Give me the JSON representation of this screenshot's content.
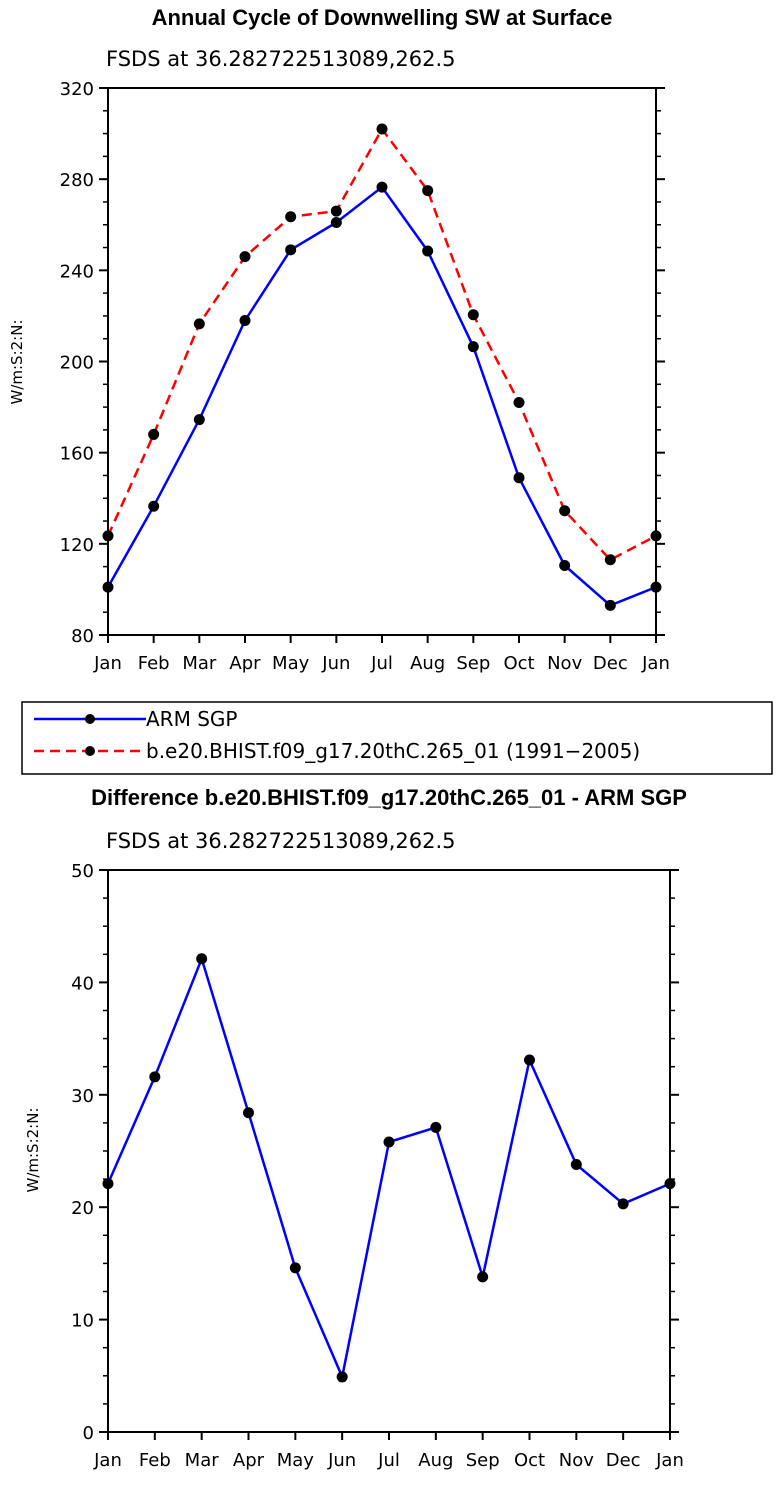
{
  "months": [
    "Jan",
    "Feb",
    "Mar",
    "Apr",
    "May",
    "Jun",
    "Jul",
    "Aug",
    "Sep",
    "Oct",
    "Nov",
    "Dec",
    "Jan"
  ],
  "chart_data": [
    {
      "type": "line",
      "title": "Annual Cycle of Downwelling SW at Surface",
      "subtitle": "FSDS at 36.282722513089,262.5",
      "xlabel": "",
      "ylabel": "W/m:S:2:N:",
      "ylim": [
        80,
        320
      ],
      "yticks": [
        80,
        120,
        160,
        200,
        240,
        280,
        320
      ],
      "categories": [
        "Jan",
        "Feb",
        "Mar",
        "Apr",
        "May",
        "Jun",
        "Jul",
        "Aug",
        "Sep",
        "Oct",
        "Nov",
        "Dec",
        "Jan"
      ],
      "series": [
        {
          "name": "ARM SGP",
          "color": "#0000ff",
          "dash": "solid",
          "values": [
            101,
            136.5,
            174.5,
            218,
            249,
            261,
            276.5,
            248.5,
            206.5,
            149,
            110.5,
            93,
            101
          ]
        },
        {
          "name": "b.e20.BHIST.f09_g17.20thC.265_01 (1991−2005)",
          "color": "#ff0000",
          "dash": "dashed",
          "values": [
            123.5,
            168,
            216.5,
            246,
            263.5,
            266,
            302,
            275,
            220.5,
            182,
            134.5,
            113,
            123.5
          ]
        }
      ]
    },
    {
      "type": "line",
      "title": "Difference b.e20.BHIST.f09_g17.20thC.265_01 - ARM SGP",
      "subtitle": "FSDS at 36.282722513089,262.5",
      "xlabel": "",
      "ylabel": "W/m:S:2:N:",
      "ylim": [
        0,
        50
      ],
      "yticks": [
        0,
        10,
        20,
        30,
        40,
        50
      ],
      "categories": [
        "Jan",
        "Feb",
        "Mar",
        "Apr",
        "May",
        "Jun",
        "Jul",
        "Aug",
        "Sep",
        "Oct",
        "Nov",
        "Dec",
        "Jan"
      ],
      "series": [
        {
          "name": "Difference",
          "color": "#0000ff",
          "dash": "solid",
          "values": [
            22.1,
            31.6,
            42.1,
            28.4,
            14.6,
            4.9,
            25.8,
            27.1,
            13.8,
            33.1,
            23.8,
            20.3,
            22.1
          ]
        }
      ]
    }
  ]
}
